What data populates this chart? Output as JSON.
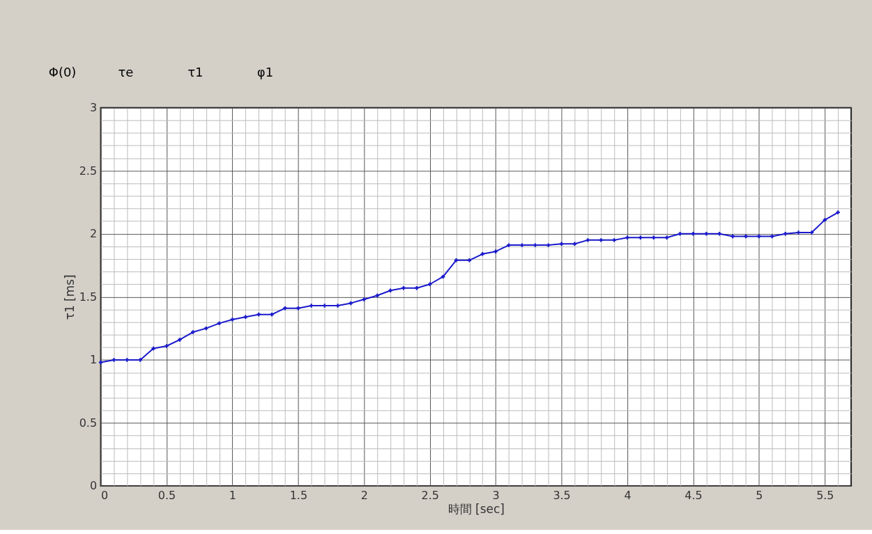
{
  "chart_data": {
    "type": "line",
    "annotations": [
      "Φ(0)",
      "τe",
      "τ1",
      "φ1"
    ],
    "xlabel": "時間 [sec]",
    "ylabel": "τ1 [ms]",
    "x": [
      0,
      0.1,
      0.2,
      0.3,
      0.4,
      0.5,
      0.6,
      0.7,
      0.8,
      0.9,
      1.0,
      1.1,
      1.2,
      1.3,
      1.4,
      1.5,
      1.6,
      1.7,
      1.8,
      1.9,
      2.0,
      2.1,
      2.2,
      2.3,
      2.4,
      2.5,
      2.6,
      2.7,
      2.8,
      2.9,
      3.0,
      3.1,
      3.2,
      3.3,
      3.4,
      3.5,
      3.6,
      3.7,
      3.8,
      3.9,
      4.0,
      4.1,
      4.2,
      4.3,
      4.4,
      4.5,
      4.6,
      4.7,
      4.8,
      4.9,
      5.0,
      5.1,
      5.2,
      5.3,
      5.4,
      5.5,
      5.6
    ],
    "series": [
      {
        "color": "#1a1acc",
        "values": [
          0.98,
          1.0,
          1.0,
          1.0,
          1.09,
          1.11,
          1.16,
          1.22,
          1.25,
          1.29,
          1.32,
          1.34,
          1.36,
          1.36,
          1.41,
          1.41,
          1.43,
          1.43,
          1.43,
          1.45,
          1.48,
          1.51,
          1.55,
          1.57,
          1.57,
          1.6,
          1.66,
          1.79,
          1.79,
          1.84,
          1.86,
          1.91,
          1.91,
          1.91,
          1.91,
          1.92,
          1.92,
          1.95,
          1.95,
          1.95,
          1.97,
          1.97,
          1.97,
          1.97,
          2.0,
          2.0,
          2.0,
          2.0,
          1.98,
          1.98,
          1.98,
          1.98,
          2.0,
          2.01,
          2.01,
          2.11,
          2.17
        ]
      }
    ],
    "xlim": [
      0,
      5.7
    ],
    "ylim": [
      0,
      3
    ],
    "xticks": [
      0,
      {
        "value": 0.1,
        "label": null
      },
      {
        "value": 0.2,
        "label": null
      },
      {
        "value": 0.3,
        "label": null
      },
      {
        "value": 0.4,
        "label": null
      },
      0.5,
      {
        "value": 0.6,
        "label": null
      },
      {
        "value": 0.7,
        "label": null
      },
      {
        "value": 0.8,
        "label": null
      },
      {
        "value": 0.9,
        "label": null
      },
      1,
      {
        "value": 1.1,
        "label": null
      },
      {
        "value": 1.2,
        "label": null
      },
      {
        "value": 1.3,
        "label": null
      },
      {
        "value": 1.4,
        "label": null
      },
      1.5,
      {
        "value": 1.6,
        "label": null
      },
      {
        "value": 1.7,
        "label": null
      },
      {
        "value": 1.8,
        "label": null
      },
      {
        "value": 1.9,
        "label": null
      },
      2,
      {
        "value": 2.1,
        "label": null
      },
      {
        "value": 2.2,
        "label": null
      },
      {
        "value": 2.3,
        "label": null
      },
      {
        "value": 2.4,
        "label": null
      },
      2.5,
      {
        "value": 2.6,
        "label": null
      },
      {
        "value": 2.7,
        "label": null
      },
      {
        "value": 2.8,
        "label": null
      },
      {
        "value": 2.9,
        "label": null
      },
      3,
      {
        "value": 3.1,
        "label": null
      },
      {
        "value": 3.2,
        "label": null
      },
      {
        "value": 3.3,
        "label": null
      },
      {
        "value": 3.4,
        "label": null
      },
      3.5,
      {
        "value": 3.6,
        "label": null
      },
      {
        "value": 3.7,
        "label": null
      },
      {
        "value": 3.8,
        "label": null
      },
      {
        "value": 3.9,
        "label": null
      },
      4,
      {
        "value": 4.1,
        "label": null
      },
      {
        "value": 4.2,
        "label": null
      },
      {
        "value": 4.3,
        "label": null
      },
      {
        "value": 4.4,
        "label": null
      },
      4.5,
      {
        "value": 4.6,
        "label": null
      },
      {
        "value": 4.7,
        "label": null
      },
      {
        "value": 4.8,
        "label": null
      },
      {
        "value": 4.9,
        "label": null
      },
      5,
      {
        "value": 5.1,
        "label": null
      },
      {
        "value": 5.2,
        "label": null
      },
      {
        "value": 5.3,
        "label": null
      },
      {
        "value": 5.4,
        "label": null
      },
      5.5,
      {
        "value": 5.6,
        "label": null
      }
    ],
    "yticks": [
      0,
      {
        "value": 0.1,
        "label": null
      },
      {
        "value": 0.2,
        "label": null
      },
      {
        "value": 0.3,
        "label": null
      },
      {
        "value": 0.4,
        "label": null
      },
      0.5,
      {
        "value": 0.6,
        "label": null
      },
      {
        "value": 0.7,
        "label": null
      },
      {
        "value": 0.8,
        "label": null
      },
      {
        "value": 0.9,
        "label": null
      },
      1,
      {
        "value": 1.1,
        "label": null
      },
      {
        "value": 1.2,
        "label": null
      },
      {
        "value": 1.3,
        "label": null
      },
      {
        "value": 1.4,
        "label": null
      },
      1.5,
      {
        "value": 1.6,
        "label": null
      },
      {
        "value": 1.7,
        "label": null
      },
      {
        "value": 1.8,
        "label": null
      },
      {
        "value": 1.9,
        "label": null
      },
      2,
      {
        "value": 2.1,
        "label": null
      },
      {
        "value": 2.2,
        "label": null
      },
      {
        "value": 2.3,
        "label": null
      },
      {
        "value": 2.4,
        "label": null
      },
      2.5,
      {
        "value": 2.6,
        "label": null
      },
      {
        "value": 2.7,
        "label": null
      },
      {
        "value": 2.8,
        "label": null
      },
      {
        "value": 2.9,
        "label": null
      },
      3
    ],
    "grid": true,
    "marker": "cross",
    "line_style": "solid"
  }
}
